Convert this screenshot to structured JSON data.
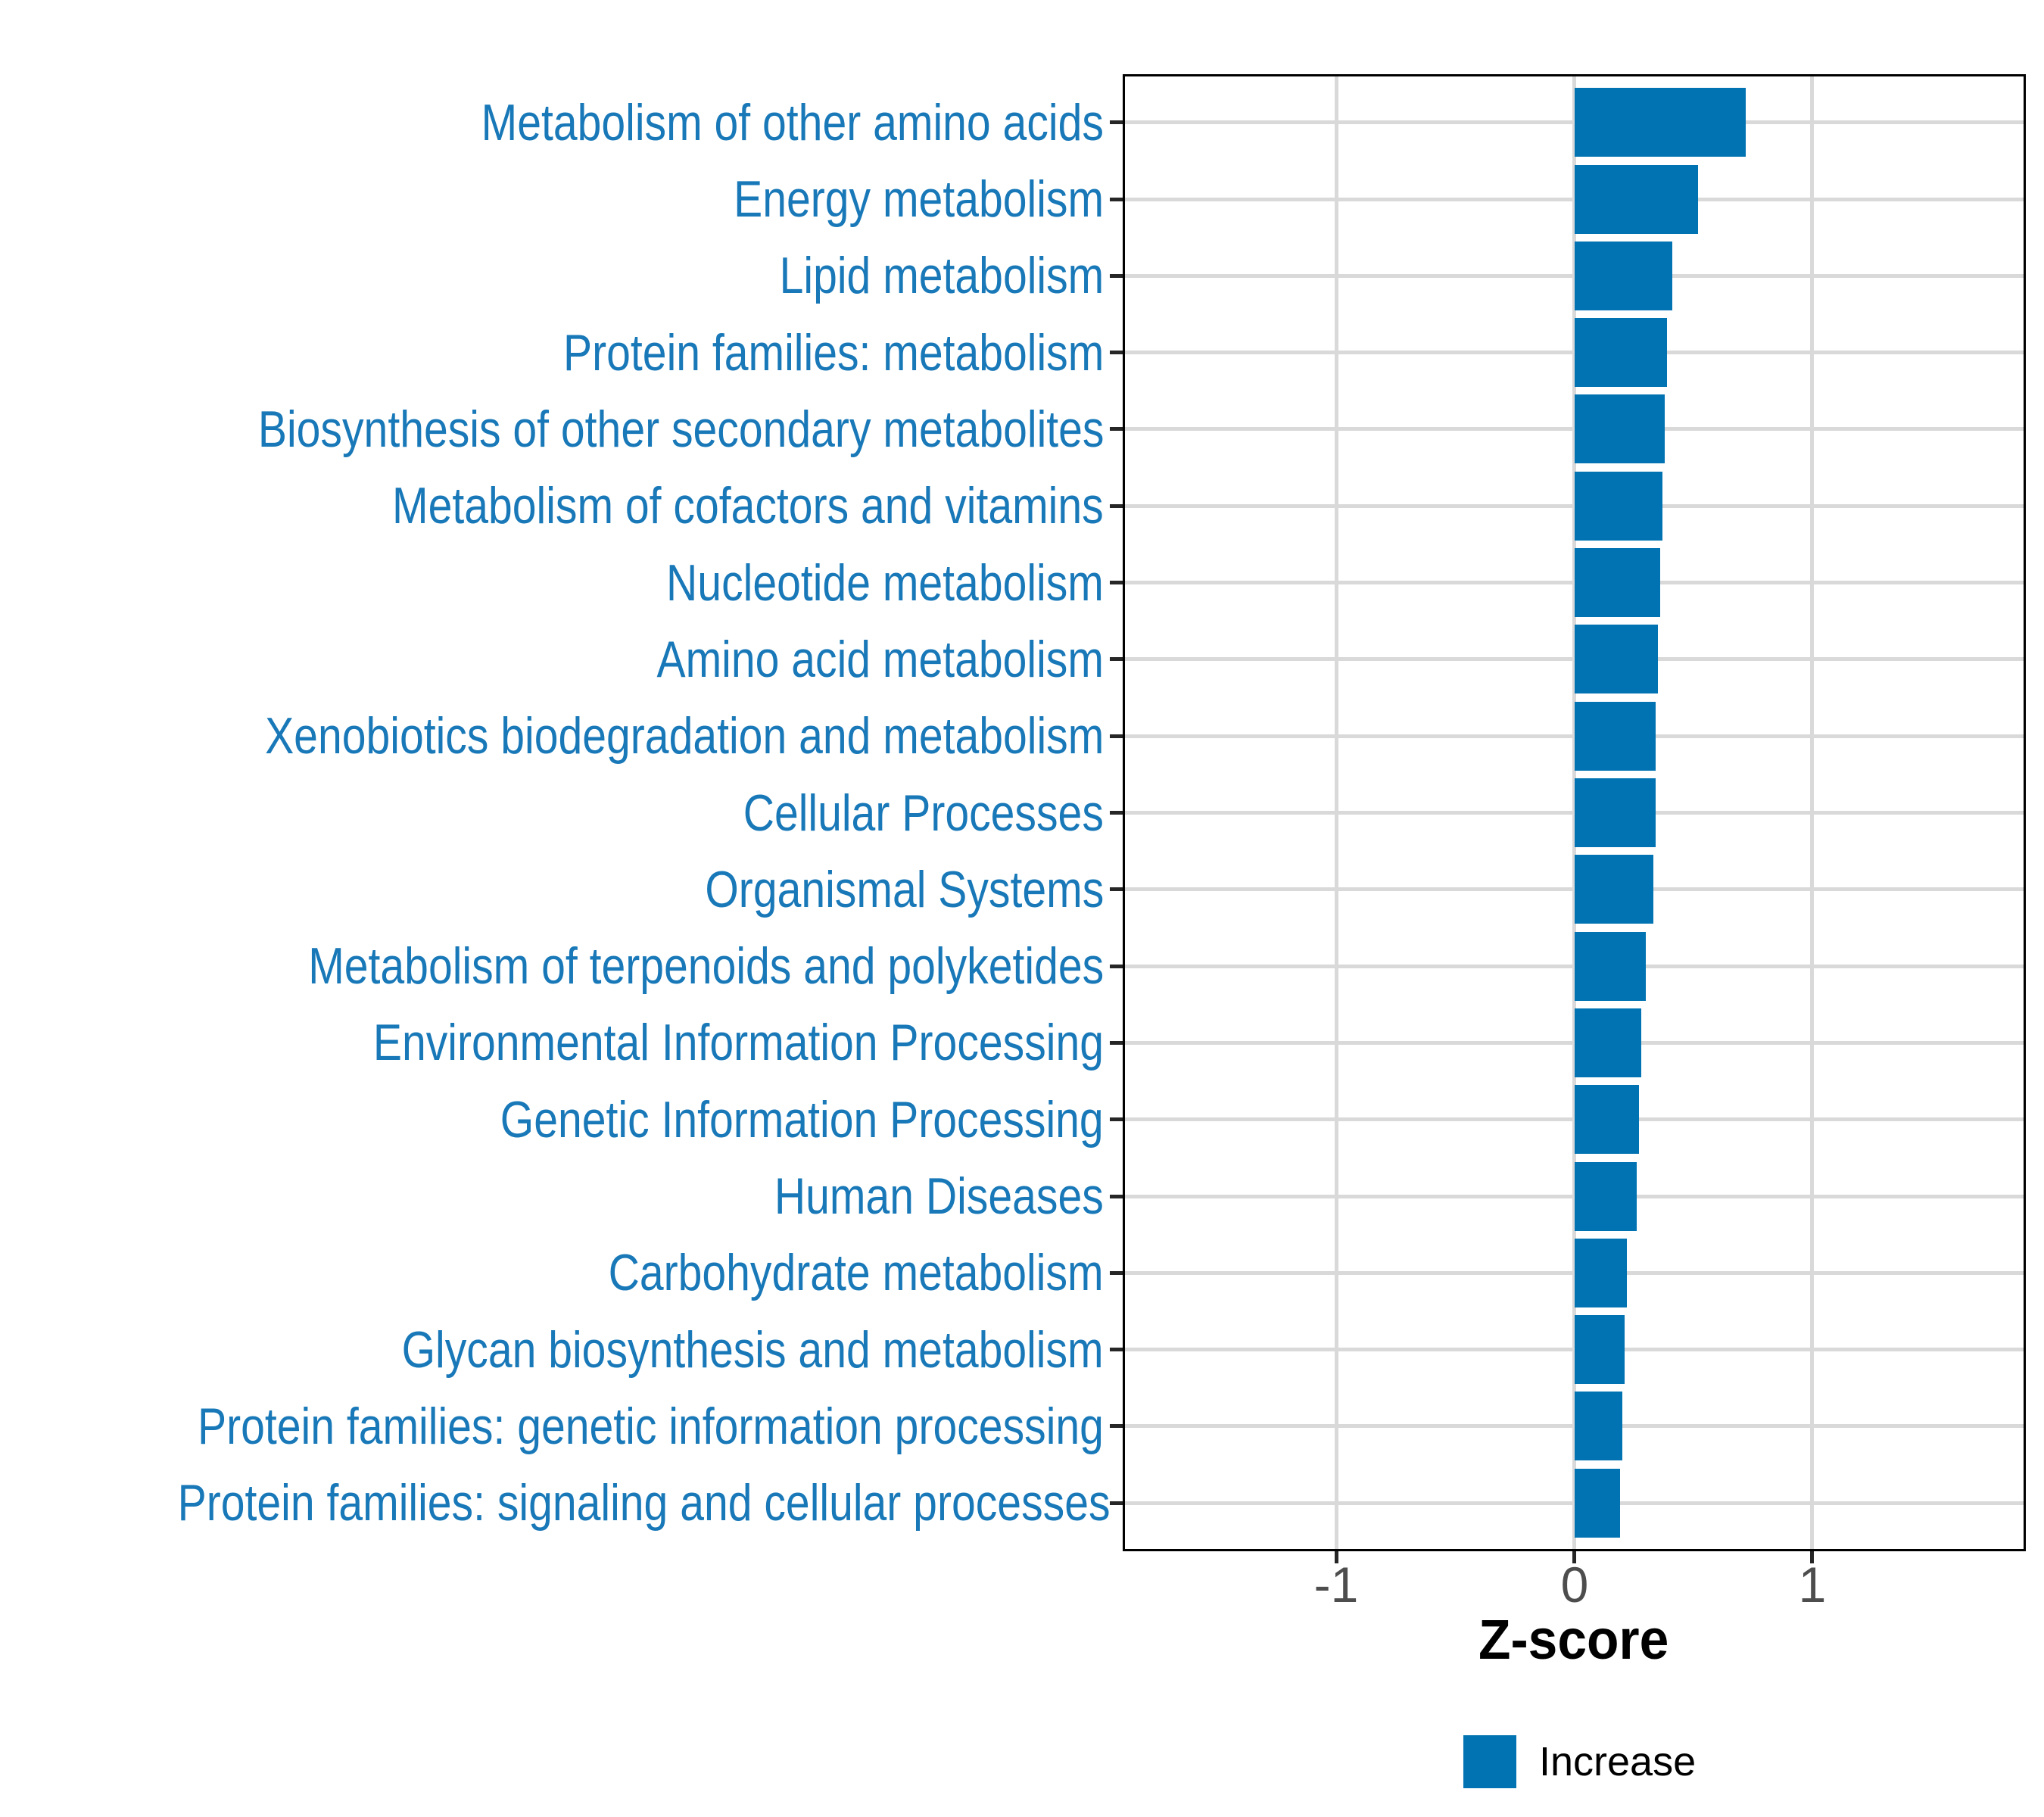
{
  "chart_data": {
    "type": "bar",
    "orientation": "horizontal",
    "title": "",
    "xlabel": "Z-score",
    "ylabel": "",
    "categories": [
      "Metabolism of other amino acids",
      "Energy metabolism",
      "Lipid metabolism",
      "Protein families: metabolism",
      "Biosynthesis of other secondary metabolites",
      "Metabolism of cofactors and vitamins",
      "Nucleotide metabolism",
      "Amino acid metabolism",
      "Xenobiotics biodegradation and metabolism",
      "Cellular Processes",
      "Organismal Systems",
      "Metabolism of terpenoids and polyketides",
      "Environmental Information Processing",
      "Genetic Information Processing",
      "Human Diseases",
      "Carbohydrate metabolism",
      "Glycan biosynthesis and metabolism",
      "Protein families: genetic information processing",
      "Protein families: signaling and cellular processes"
    ],
    "series": [
      {
        "name": "Increase",
        "values": [
          0.72,
          0.52,
          0.41,
          0.39,
          0.38,
          0.37,
          0.36,
          0.35,
          0.34,
          0.34,
          0.33,
          0.3,
          0.28,
          0.27,
          0.26,
          0.22,
          0.21,
          0.2,
          0.19
        ]
      }
    ],
    "xlim": [
      -1.89,
      1.89
    ],
    "xticks": [
      -1,
      0,
      1
    ],
    "xtick_labels": [
      "-1",
      "0",
      "1"
    ],
    "grid": "major-only",
    "legend": {
      "position": "bottom-center",
      "entries": [
        {
          "label": "Increase",
          "color": "#0173b2"
        }
      ]
    },
    "colors": {
      "bar_fill": "#0173b2",
      "category_text": "#1878b8",
      "axis_tick_text": "#4d4d4d",
      "axis_title_text": "#000000",
      "gridline": "#d9d9d9",
      "panel_border": "#000000",
      "tick_mark": "#262626",
      "background": "#ffffff"
    }
  }
}
